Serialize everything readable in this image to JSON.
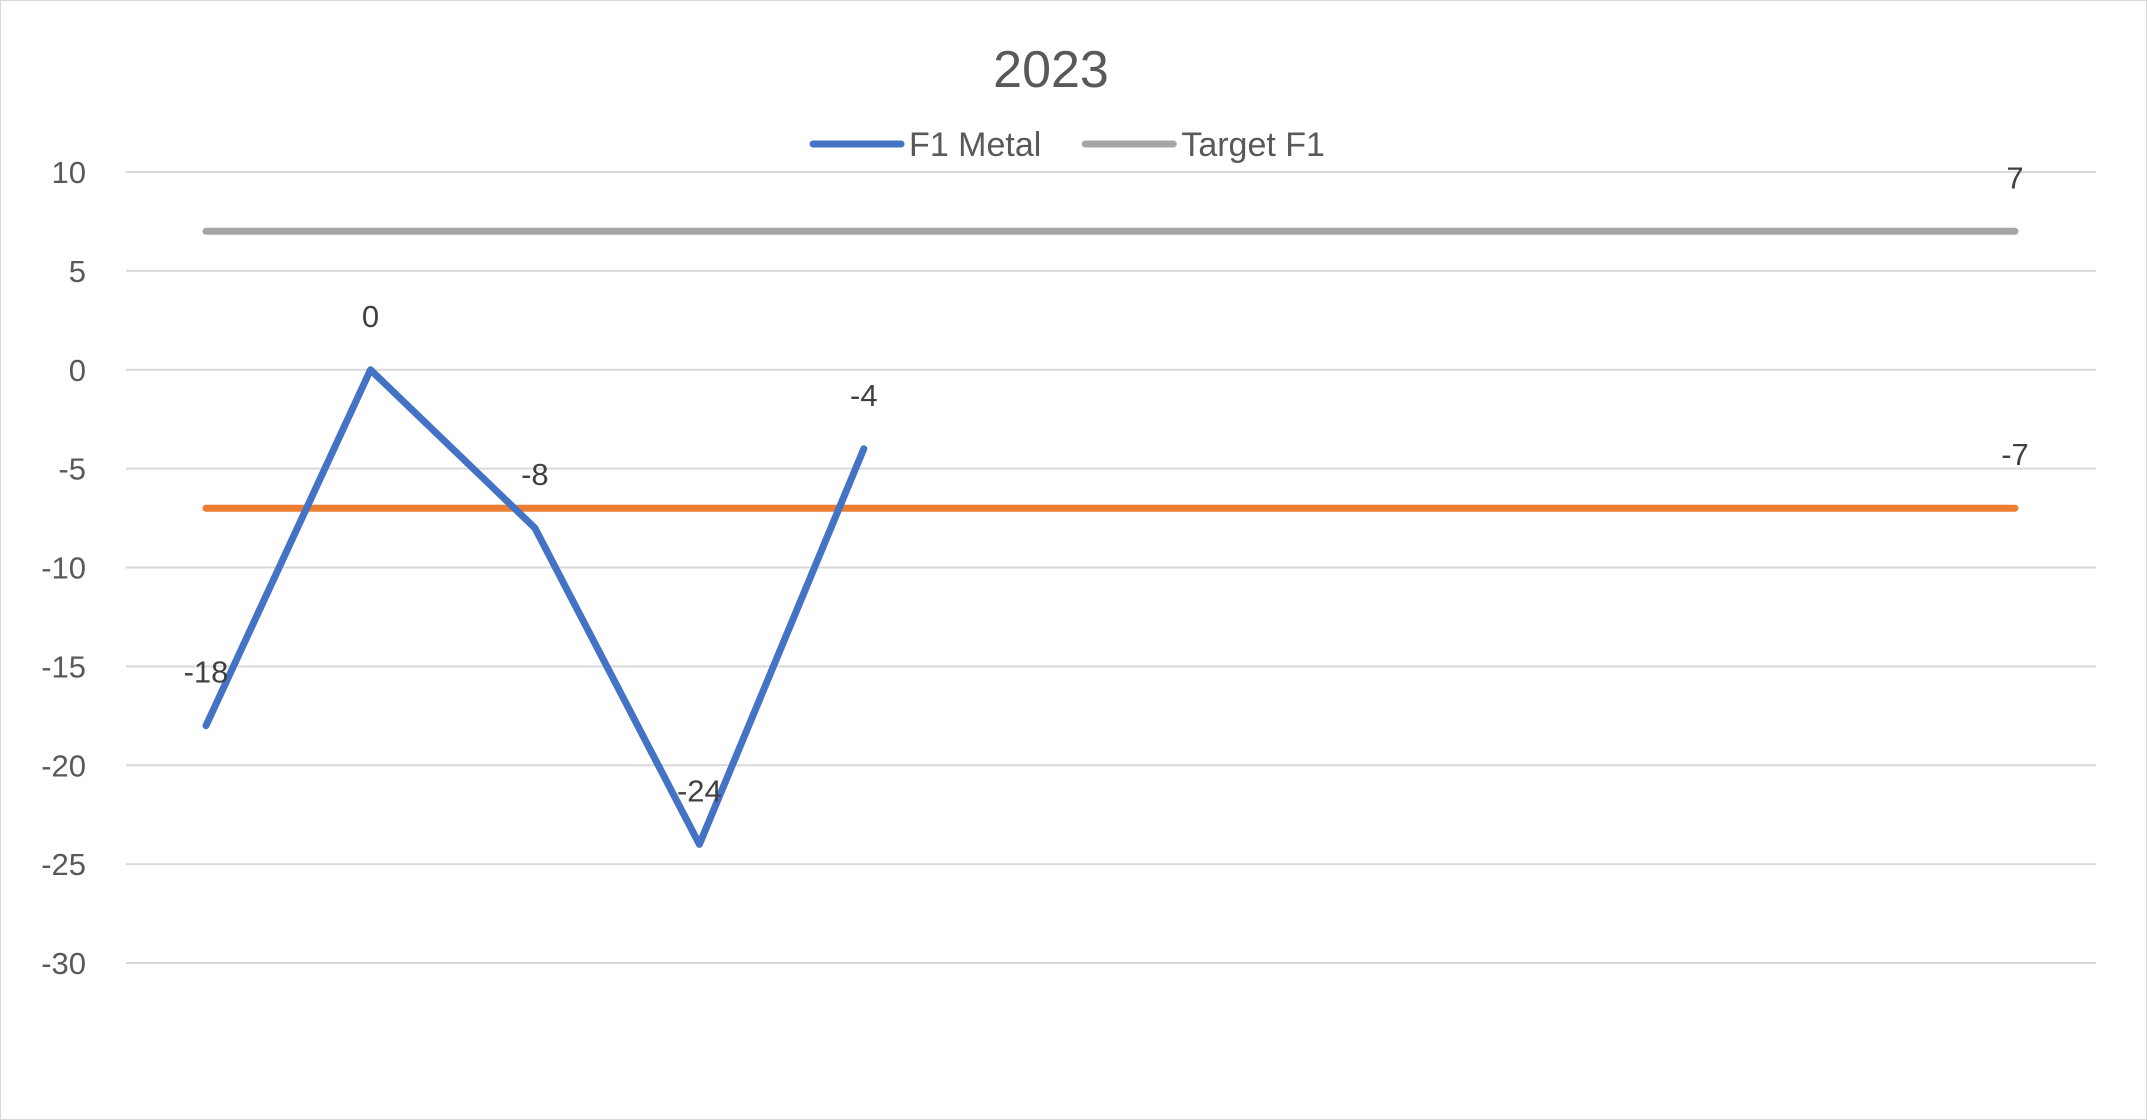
{
  "chart_data": {
    "type": "line",
    "title": "2023",
    "xlabel": "",
    "ylabel": "",
    "ylim": [
      -30,
      10
    ],
    "yticks": [
      10,
      5,
      0,
      -5,
      -10,
      -15,
      -20,
      -25,
      -30
    ],
    "grid": true,
    "legend_position": "top",
    "x": [
      1,
      2,
      3,
      4,
      5,
      6,
      7,
      8,
      9,
      10,
      11,
      12
    ],
    "series": [
      {
        "name": "F1 Metal",
        "color": "#4472c4",
        "values": [
          -18,
          0,
          -8,
          -24,
          -4,
          null,
          null,
          null,
          null,
          null,
          null,
          null
        ],
        "data_labels": [
          "-18",
          "0",
          "-8",
          "-24",
          "-4",
          "",
          "",
          "",
          "",
          "",
          "",
          ""
        ],
        "in_legend": true
      },
      {
        "name": "Target F1",
        "color": "#a5a5a5",
        "values": [
          7,
          7,
          7,
          7,
          7,
          7,
          7,
          7,
          7,
          7,
          7,
          7
        ],
        "data_labels": [
          "",
          "",
          "",
          "",
          "",
          "",
          "",
          "",
          "",
          "",
          "",
          "7"
        ],
        "in_legend": true
      },
      {
        "name": "",
        "color": "#ed7d31",
        "values": [
          -7,
          -7,
          -7,
          -7,
          -7,
          -7,
          -7,
          -7,
          -7,
          -7,
          -7,
          -7
        ],
        "data_labels": [
          "",
          "",
          "",
          "",
          "",
          "",
          "",
          "",
          "",
          "",
          "",
          "-7"
        ],
        "in_legend": false
      }
    ]
  }
}
